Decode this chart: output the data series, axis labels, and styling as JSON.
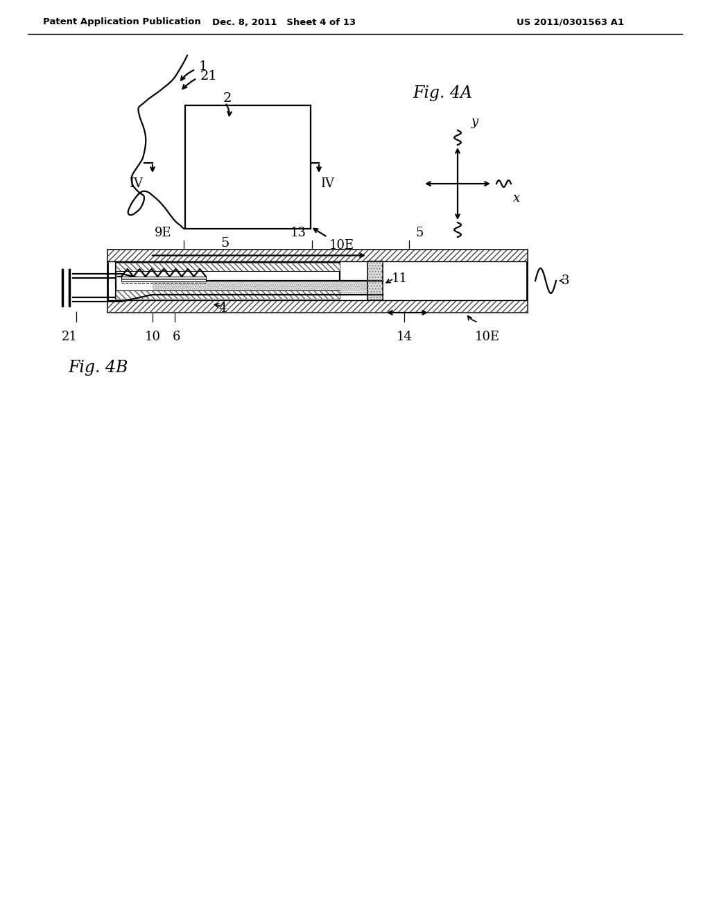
{
  "bg_color": "#ffffff",
  "line_color": "#000000",
  "header_left": "Patent Application Publication",
  "header_mid": "Dec. 8, 2011   Sheet 4 of 13",
  "header_right": "US 2011/0301563 A1",
  "fig4a_label": "Fig. 4A",
  "fig4b_label": "Fig. 4B"
}
